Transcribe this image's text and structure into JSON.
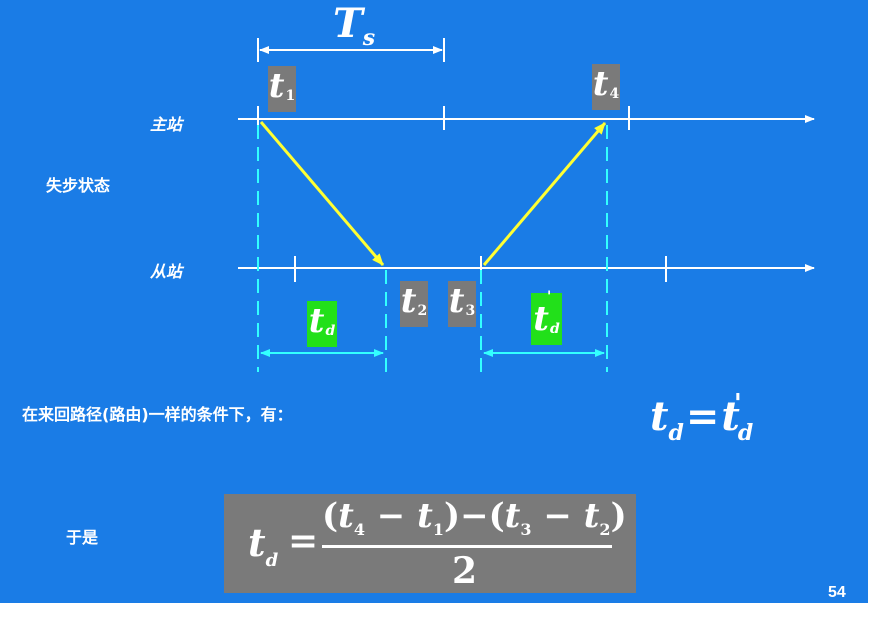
{
  "period_label": {
    "var": "T",
    "sub": "s"
  },
  "stations": {
    "master": "主站",
    "slave": "从站"
  },
  "state_label": "失步状态",
  "time_labels": {
    "t1": {
      "var": "t",
      "sub": "1"
    },
    "t2": {
      "var": "t",
      "sub": "2"
    },
    "t3": {
      "var": "t",
      "sub": "3"
    },
    "t4": {
      "var": "t",
      "sub": "4"
    },
    "td": {
      "var": "t",
      "sub": "d"
    },
    "td_prime": {
      "var": "t",
      "sub": "d",
      "mark": "'"
    }
  },
  "condition_text": "在来回路径(路由)一样的条件下，有：",
  "equality": {
    "lhs_var": "t",
    "lhs_sub": "d",
    "op": "=",
    "rhs_var": "t",
    "rhs_sub": "d",
    "rhs_prime": "'"
  },
  "therefore_label": "于是",
  "formula": {
    "lhs_var": "t",
    "lhs_sub": "d",
    "equals": "=",
    "open1": "(",
    "t4v": "t",
    "t4s": "4",
    "minus1": " − ",
    "t1v": "t",
    "t1s": "1",
    "close1": ")",
    "minus_mid": "−",
    "open2": "(",
    "t3v": "t",
    "t3s": "3",
    "minus2": " − ",
    "t2v": "t",
    "t2s": "2",
    "close2": ")",
    "denominator": "2"
  },
  "page_number": "54",
  "colors": {
    "background": "#1a7ce6",
    "signal_arrow": "#ffff33",
    "delay_arrow": "#33ffff",
    "gray_box": "#7a7a7a",
    "green_box": "#22e01a"
  }
}
